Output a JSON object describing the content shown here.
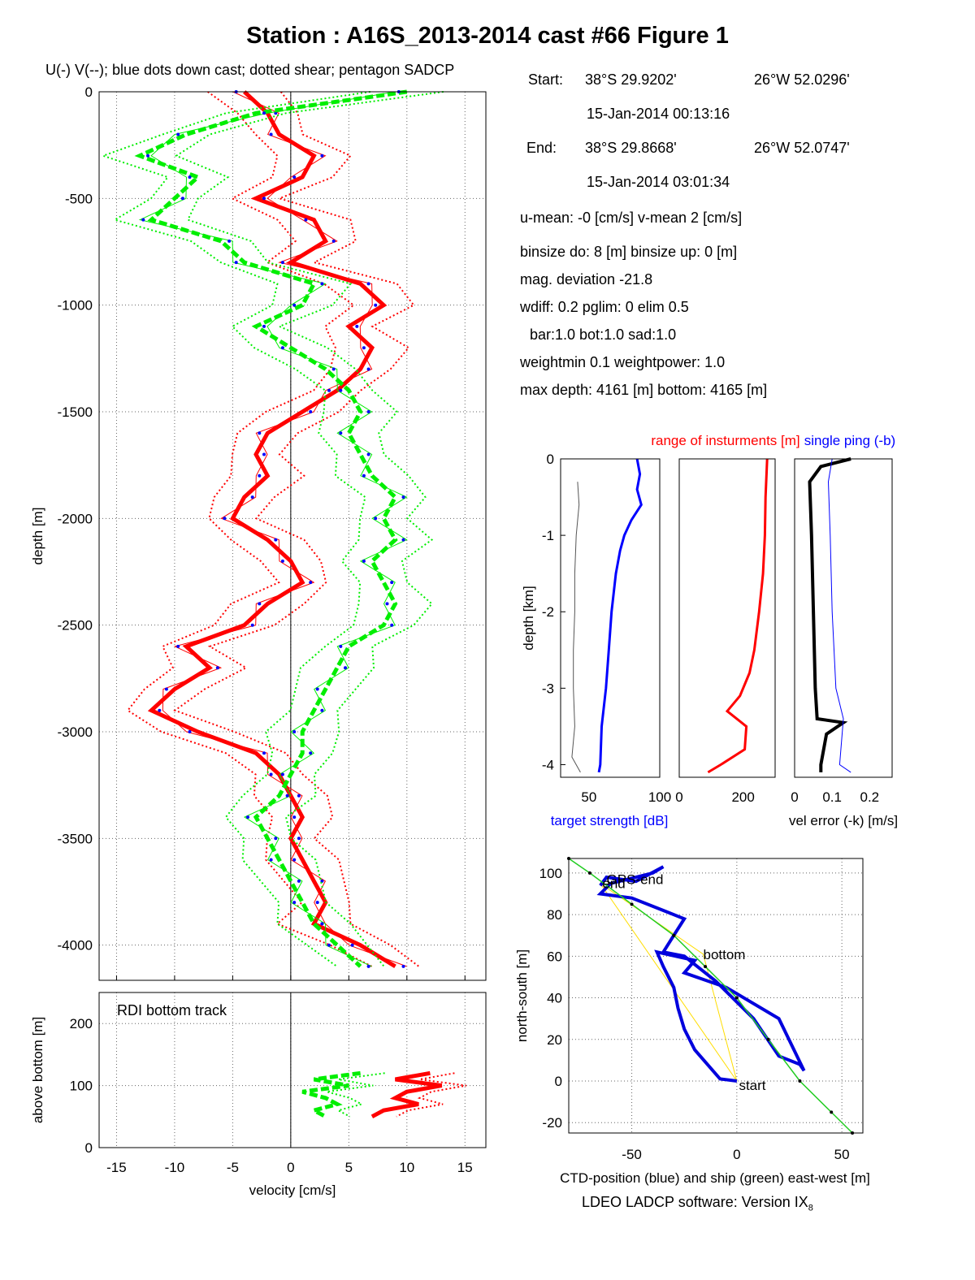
{
  "title": "Station : A16S_2013-2014 cast #66  Figure 1",
  "subtitle": "U(-) V(--); blue dots down cast; dotted shear; pentagon SADCP",
  "info": {
    "start_label": "Start:",
    "start_lat": "38°S 29.9202'",
    "start_lon": "26°W 52.0296'",
    "start_time": "15-Jan-2014 00:13:16",
    "end_label": "End:",
    "end_lat": "38°S 29.8668'",
    "end_lon": "26°W 52.0747'",
    "end_time": "15-Jan-2014 03:01:34",
    "means": "u-mean:  -0 [cm/s]    v-mean   2 [cm/s]",
    "binsize": "binsize do: 8 [m]  binsize up:  0 [m]",
    "magdev": "mag. deviation -21.8",
    "wdiff": "wdiff: 0.2  pglim: 0  elim 0.5",
    "bar": "bar:1.0 bot:1.0 sad:1.0",
    "weight": "weightmin 0.1  weightpower: 1.0",
    "maxdepth": "max depth: 4161 [m]   bottom: 4165 [m]"
  },
  "footer": "LDEO LADCP software: Version IX",
  "footer_sub": "8",
  "colors": {
    "u": "#ff0000",
    "v": "#00ee00",
    "dots": "#0000ff",
    "ctd": "#0000dd",
    "ship": "#22cc22",
    "track": "#ffdd00"
  },
  "chart_data": [
    {
      "type": "line",
      "name": "velocity profile",
      "xlabel": "velocity [cm/s]",
      "ylabel": "depth [m]",
      "xlim": [
        -16.5,
        16.8
      ],
      "ylim": [
        -4165,
        0
      ],
      "xticks": [
        -15,
        -10,
        -5,
        0,
        5,
        10,
        15
      ],
      "yticks": [
        0,
        -500,
        -1000,
        -1500,
        -2000,
        -2500,
        -3000,
        -3500,
        -4000
      ],
      "grid": true,
      "series": [
        {
          "name": "U(-)",
          "color": "#ff0000",
          "depth": [
            0,
            -100,
            -200,
            -300,
            -400,
            -500,
            -600,
            -700,
            -800,
            -900,
            -1000,
            -1100,
            -1200,
            -1300,
            -1400,
            -1500,
            -1600,
            -1700,
            -1800,
            -1900,
            -2000,
            -2100,
            -2200,
            -2300,
            -2400,
            -2500,
            -2600,
            -2700,
            -2800,
            -2900,
            -3000,
            -3100,
            -3200,
            -3300,
            -3400,
            -3500,
            -3600,
            -3700,
            -3800,
            -3900,
            -4000,
            -4100
          ],
          "values": [
            -4,
            -2,
            -1,
            2,
            1,
            -3,
            2,
            3,
            0,
            6,
            8,
            5,
            7,
            6,
            4,
            1,
            -2,
            -3,
            -2,
            -4,
            -5,
            -2,
            0,
            1,
            -2,
            -4,
            -9,
            -7,
            -10,
            -12,
            -8,
            -3,
            -1,
            0,
            1,
            0,
            1,
            2,
            3,
            2,
            6,
            9
          ]
        },
        {
          "name": "V(--)",
          "color": "#00ee00",
          "depth": [
            0,
            -100,
            -200,
            -300,
            -400,
            -500,
            -600,
            -700,
            -800,
            -900,
            -1000,
            -1100,
            -1200,
            -1300,
            -1400,
            -1500,
            -1600,
            -1700,
            -1800,
            -1900,
            -2000,
            -2100,
            -2200,
            -2300,
            -2400,
            -2500,
            -2600,
            -2700,
            -2800,
            -2900,
            -3000,
            -3100,
            -3200,
            -3300,
            -3400,
            -3500,
            -3600,
            -3700,
            -3800,
            -3900,
            -4000,
            -4100
          ],
          "values": [
            10,
            -3,
            -9,
            -13,
            -8,
            -10,
            -12,
            -6,
            -4,
            2,
            1,
            -3,
            0,
            3,
            5,
            6,
            5,
            6,
            7,
            9,
            8,
            9,
            7,
            8,
            9,
            8,
            5,
            4,
            3,
            2,
            1,
            1,
            0,
            -1,
            -3,
            -2,
            -1,
            0,
            1,
            2,
            4,
            6
          ]
        }
      ]
    },
    {
      "type": "line",
      "name": "bottom track",
      "annotation": "RDI bottom track",
      "xlabel": "velocity [cm/s]",
      "ylabel": "above bottom [m]",
      "xlim": [
        -16.5,
        16.8
      ],
      "ylim": [
        0,
        250
      ],
      "xticks": [
        -15,
        -10,
        -5,
        0,
        5,
        10,
        15
      ],
      "yticks": [
        0,
        100,
        200
      ],
      "grid": true,
      "series": [
        {
          "name": "U(-)",
          "color": "#ff0000",
          "height": [
            120,
            110,
            100,
            90,
            80,
            70,
            60,
            50
          ],
          "values": [
            12,
            9,
            13,
            10,
            9,
            11,
            8,
            7
          ]
        },
        {
          "name": "V(--)",
          "color": "#00ee00",
          "height": [
            120,
            110,
            100,
            90,
            80,
            70,
            60,
            50
          ],
          "values": [
            6,
            2,
            5,
            1,
            3,
            4,
            2,
            3
          ]
        }
      ]
    },
    {
      "type": "line",
      "name": "target strength",
      "xlabel": "target strength [dB]",
      "ylabel": "depth [km]",
      "ylim": [
        -4.165,
        0
      ],
      "xlim": [
        30,
        100
      ],
      "xticks": [
        50,
        100
      ],
      "yticks": [
        0,
        -1,
        -2,
        -3,
        -4
      ],
      "series": [
        {
          "name": "target strength (b)",
          "color": "#0000ff",
          "depth": [
            0,
            -0.2,
            -0.4,
            -0.6,
            -0.8,
            -1.0,
            -1.2,
            -1.5,
            -2.0,
            -2.5,
            -3.0,
            -3.5,
            -4.0,
            -4.1
          ],
          "values": [
            84,
            86,
            84,
            87,
            80,
            75,
            72,
            69,
            66,
            64,
            62,
            59,
            58,
            57
          ]
        },
        {
          "name": "target strength (k)",
          "color": "#555555",
          "depth": [
            -0.3,
            -0.6,
            -1.0,
            -1.5,
            -2.0,
            -2.5,
            -3.0,
            -3.5,
            -3.9,
            -4.1
          ],
          "values": [
            42,
            43,
            41,
            40,
            40,
            39,
            39,
            40,
            38,
            44
          ]
        }
      ]
    },
    {
      "type": "line",
      "name": "range of instruments",
      "title": "range of insturments [m]",
      "xlim": [
        0,
        300
      ],
      "xticks": [
        0,
        200
      ],
      "series": [
        {
          "name": "range",
          "color": "#ff0000",
          "depth": [
            0,
            -0.5,
            -1.0,
            -1.5,
            -2.0,
            -2.5,
            -2.8,
            -3.1,
            -3.3,
            -3.5,
            -3.8,
            -4.0,
            -4.1
          ],
          "values": [
            275,
            270,
            268,
            262,
            250,
            235,
            220,
            190,
            150,
            210,
            205,
            130,
            90
          ]
        }
      ]
    },
    {
      "type": "line",
      "name": "velocity error",
      "title": "single ping (-b)",
      "xlabel": "vel error (-k) [m/s]",
      "xlim": [
        0,
        0.26
      ],
      "xticks": [
        0,
        0.1,
        0.2
      ],
      "series": [
        {
          "name": "vel error (k)",
          "color": "#000000",
          "depth": [
            0,
            -0.1,
            -0.3,
            -1.0,
            -2.0,
            -3.0,
            -3.4,
            -3.45,
            -3.6,
            -4.0,
            -4.1
          ],
          "values": [
            0.15,
            0.07,
            0.04,
            0.045,
            0.05,
            0.055,
            0.06,
            0.13,
            0.085,
            0.07,
            0.07
          ]
        },
        {
          "name": "single ping (b)",
          "color": "#0000ff",
          "depth": [
            0,
            -0.3,
            -1.0,
            -2.0,
            -3.0,
            -3.4,
            -4.0,
            -4.1
          ],
          "values": [
            0.1,
            0.09,
            0.095,
            0.1,
            0.11,
            0.13,
            0.12,
            0.15
          ]
        }
      ]
    },
    {
      "type": "line",
      "name": "position",
      "xlabel": "CTD-position (blue) and ship (green) east-west [m]",
      "ylabel": "north-south [m]",
      "xlim": [
        -80,
        60
      ],
      "ylim": [
        -25,
        107
      ],
      "xticks": [
        -50,
        0,
        50
      ],
      "yticks": [
        -20,
        0,
        20,
        40,
        60,
        80,
        100
      ],
      "grid": true,
      "labels": [
        {
          "text": "GPS-end",
          "x": -62,
          "y": 97
        },
        {
          "text": "end",
          "x": -64,
          "y": 95
        },
        {
          "text": "bottom",
          "x": -16,
          "y": 61
        },
        {
          "text": "start",
          "x": 1,
          "y": -2
        }
      ],
      "series": [
        {
          "name": "CTD",
          "color": "#0000dd",
          "x": [
            0,
            -8,
            -20,
            -25,
            -28,
            -30,
            -35,
            -38,
            -20,
            -25,
            -5,
            20,
            32,
            30,
            20,
            8,
            -10,
            -25,
            -35,
            -30,
            -25,
            -35,
            -50,
            -65,
            -60,
            -40,
            -35,
            -48,
            -62,
            -65
          ],
          "y": [
            0,
            1,
            15,
            25,
            35,
            45,
            55,
            62,
            58,
            52,
            45,
            30,
            5,
            8,
            12,
            30,
            48,
            60,
            62,
            70,
            78,
            82,
            88,
            90,
            95,
            100,
            103,
            96,
            98,
            94
          ]
        },
        {
          "name": "ship",
          "color": "#22cc22",
          "x": [
            -80,
            -70,
            -50,
            -30,
            -15,
            0,
            15,
            30,
            45,
            55
          ],
          "y": [
            107,
            100,
            85,
            70,
            55,
            40,
            20,
            0,
            -15,
            -25
          ]
        }
      ]
    }
  ]
}
